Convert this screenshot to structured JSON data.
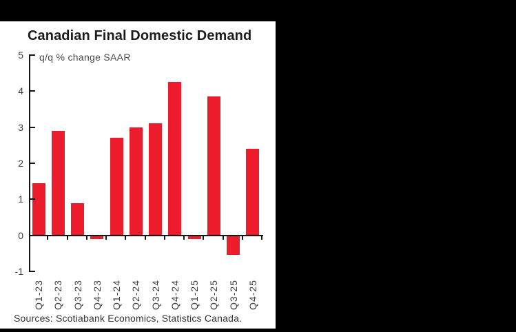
{
  "page": {
    "backdrop_color": "#000000",
    "panel_color": "#ffffff"
  },
  "chart_data": {
    "type": "bar",
    "title": "Canadian Final Domestic Demand",
    "subtitle": "q/q % change SAAR",
    "categories": [
      "Q1-23",
      "Q2-23",
      "Q3-23",
      "Q4-23",
      "Q1-24",
      "Q2-24",
      "Q3-24",
      "Q4-24",
      "Q1-25",
      "Q2-25",
      "Q3-25",
      "Q4-25"
    ],
    "values": [
      1.45,
      2.9,
      0.9,
      -0.1,
      2.7,
      3.0,
      3.1,
      4.25,
      -0.1,
      3.85,
      -0.55,
      2.4
    ],
    "xlabel": "",
    "ylabel": "q/q % change SAAR",
    "ylim": [
      -1,
      5
    ],
    "yticks": [
      5,
      4,
      3,
      2,
      1,
      0,
      -1
    ],
    "grid": false,
    "legend": "none",
    "bar_color": "#ed1c2d",
    "axis_color": "#151515",
    "source_note": "Sources: Scotiabank Economics, Statistics Canada."
  }
}
